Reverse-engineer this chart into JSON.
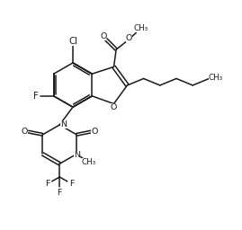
{
  "bg": "#ffffff",
  "lc": "#1a1a1a",
  "lw": 1.1,
  "fs": 6.8,
  "figsize": [
    2.69,
    2.56
  ],
  "dpi": 100,
  "xlim": [
    0,
    10
  ],
  "ylim": [
    0,
    9.5
  ]
}
